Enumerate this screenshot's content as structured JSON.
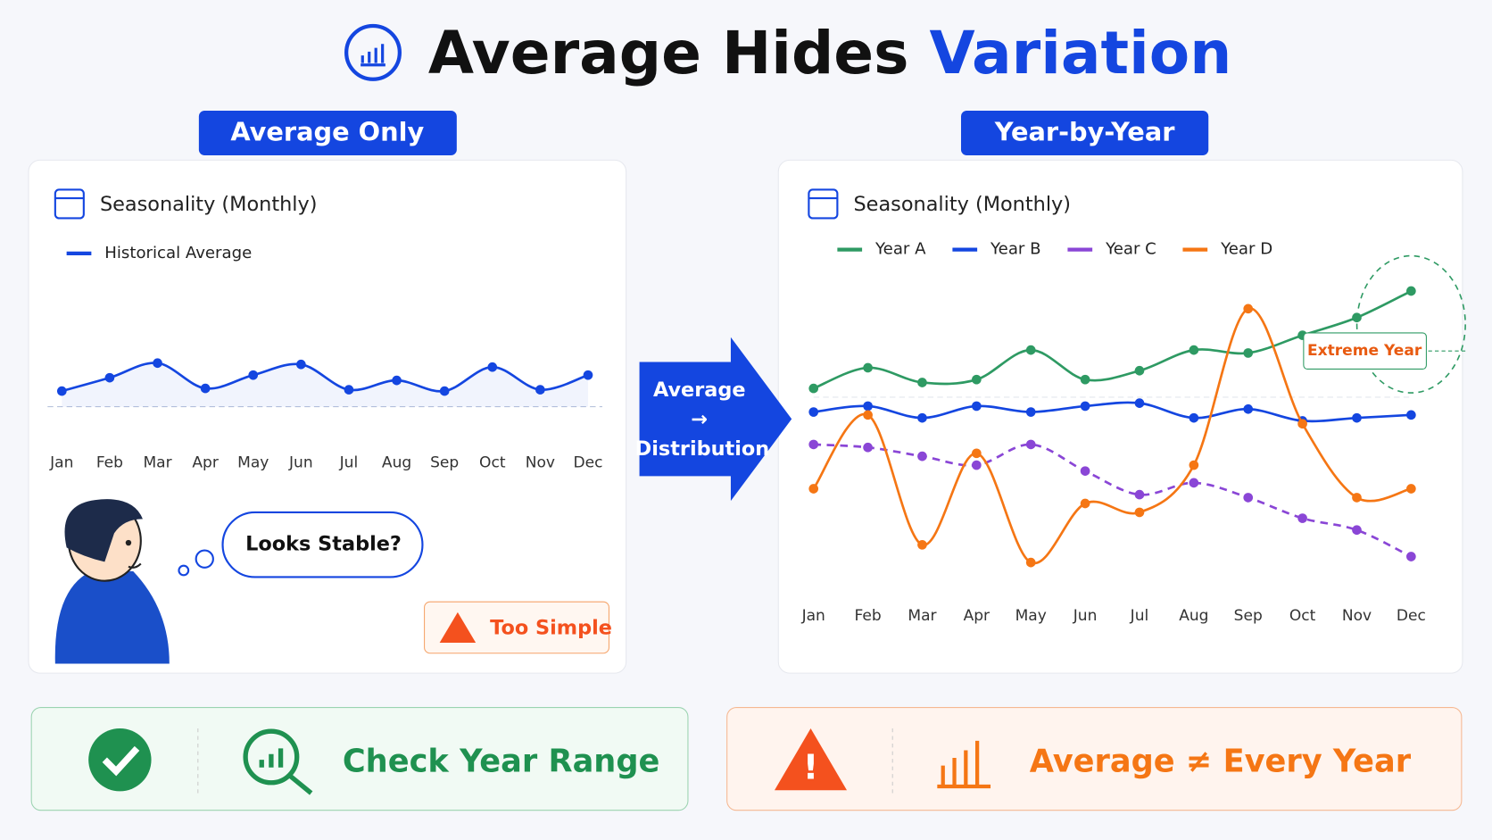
{
  "title": {
    "main": "Average Hides",
    "accent": "Variation"
  },
  "panels": [
    {
      "badge": "Average Only"
    },
    {
      "badge": "Year-by-Year"
    }
  ],
  "chart_data": [
    {
      "type": "line",
      "title": "Seasonality (Monthly)",
      "categories": [
        "Jan",
        "Feb",
        "Mar",
        "Apr",
        "May",
        "Jun",
        "Jul",
        "Aug",
        "Sep",
        "Oct",
        "Nov",
        "Dec"
      ],
      "ylim": [
        0,
        100
      ],
      "series": [
        {
          "name": "Historical Average",
          "color": "#1446e0",
          "values": [
            21,
            31,
            42,
            23,
            33,
            41,
            22,
            29,
            21,
            39,
            22,
            33
          ]
        }
      ]
    },
    {
      "type": "line",
      "title": "Seasonality (Monthly)",
      "categories": [
        "Jan",
        "Feb",
        "Mar",
        "Apr",
        "May",
        "Jun",
        "Jul",
        "Aug",
        "Sep",
        "Oct",
        "Nov",
        "Dec"
      ],
      "ylim": [
        0,
        100
      ],
      "series": [
        {
          "name": "Year A",
          "color": "#2e9a63",
          "values": [
            62,
            69,
            64,
            65,
            75,
            65,
            68,
            75,
            74,
            80,
            86,
            95
          ]
        },
        {
          "name": "Year B",
          "color": "#1446e0",
          "values": [
            54,
            56,
            52,
            56,
            54,
            56,
            57,
            52,
            55,
            51,
            52,
            53
          ]
        },
        {
          "name": "Year C",
          "color": "#8a46d6",
          "dashed": true,
          "values": [
            43,
            42,
            39,
            36,
            43,
            34,
            26,
            30,
            25,
            18,
            14,
            5
          ]
        },
        {
          "name": "Year D",
          "color": "#f57614",
          "values": [
            28,
            53,
            9,
            40,
            3,
            23,
            20,
            36,
            89,
            50,
            25,
            28
          ]
        }
      ],
      "annotation": "Extreme Year"
    }
  ],
  "bubble": "Looks Stable?",
  "warning": "Too Simple",
  "arrow": [
    "Average",
    "→",
    "Distribution"
  ],
  "footer": [
    {
      "text": "Check Year Range"
    },
    {
      "text": "Average ≠ Every Year"
    }
  ]
}
